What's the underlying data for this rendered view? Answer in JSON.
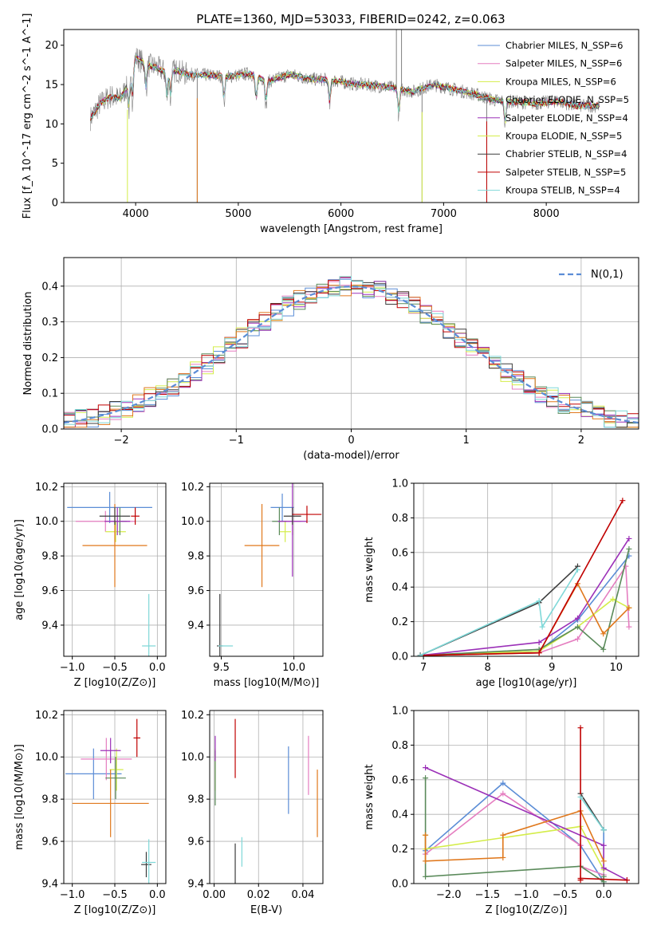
{
  "figure": {
    "title": "PLATE=1360, MJD=53033, FIBERID=0242, z=0.063"
  },
  "chart_data": [
    {
      "id": "spectrum",
      "type": "line",
      "xlabel": "wavelength [Angstrom, rest frame]",
      "ylabel": "Flux [f_λ 10^-17 erg cm^-2 s^-1 A^-1]",
      "xlim": [
        3300,
        8900
      ],
      "ylim": [
        0,
        22
      ],
      "xticks": [
        4000,
        5000,
        6000,
        7000,
        8000
      ],
      "yticks": [
        0,
        5,
        10,
        15,
        20
      ],
      "grid": false,
      "legend_position": "top-right",
      "series": [
        {
          "name": "Chabrier MILES, N_SSP=6",
          "color": "#5b8dd6"
        },
        {
          "name": "Salpeter MILES, N_SSP=6",
          "color": "#e57ec0"
        },
        {
          "name": "Kroupa MILES, N_SSP=6",
          "color": "#d4ed4a"
        },
        {
          "name": "Chabrier ELODIE, N_SSP=5",
          "color": "#5a8a5a"
        },
        {
          "name": "Salpeter ELODIE, N_SSP=4",
          "color": "#9b30b8"
        },
        {
          "name": "Kroupa ELODIE, N_SSP=5",
          "color": "#d4ed4a"
        },
        {
          "name": "Chabrier STELIB, N_SSP=4",
          "color": "#3d3d3d"
        },
        {
          "name": "Salpeter STELIB, N_SSP=5",
          "color": "#c00000"
        },
        {
          "name": "Kroupa STELIB, N_SSP=4",
          "color": "#7fd8d8"
        }
      ],
      "observed_color": "#808080",
      "continuum_points": [
        [
          3550,
          10.5
        ],
        [
          3650,
          12.5
        ],
        [
          3750,
          13.5
        ],
        [
          3850,
          13.2
        ],
        [
          3950,
          15.5
        ],
        [
          4000,
          18.5
        ],
        [
          4100,
          17.5
        ],
        [
          4200,
          17.2
        ],
        [
          4300,
          16.5
        ],
        [
          4400,
          16.8
        ],
        [
          4500,
          16.3
        ],
        [
          4700,
          16.2
        ],
        [
          4900,
          16.0
        ],
        [
          5100,
          16.4
        ],
        [
          5300,
          15.4
        ],
        [
          5500,
          16.3
        ],
        [
          5700,
          15.7
        ],
        [
          5900,
          15.6
        ],
        [
          6100,
          15.1
        ],
        [
          6300,
          14.9
        ],
        [
          6500,
          14.6
        ],
        [
          6700,
          14.1
        ],
        [
          6900,
          15.0
        ],
        [
          7100,
          14.4
        ],
        [
          7300,
          13.8
        ],
        [
          7500,
          13.0
        ],
        [
          7700,
          12.8
        ],
        [
          7900,
          12.6
        ],
        [
          8100,
          12.9
        ],
        [
          8300,
          12.3
        ],
        [
          8500,
          12.3
        ]
      ]
    },
    {
      "id": "residuals",
      "type": "line",
      "xlabel": "(data-model)/error",
      "ylabel": "Normed distribution",
      "xlim": [
        -2.5,
        2.5
      ],
      "ylim": [
        0,
        0.48
      ],
      "xticks": [
        -2,
        -1,
        0,
        1,
        2
      ],
      "yticks": [
        0.0,
        0.1,
        0.2,
        0.3,
        0.4
      ],
      "grid": true,
      "legend_position": "top-right",
      "legend_label": "N(0,1)",
      "normal_curve_color": "#5b8dd6",
      "bin_width": 0.1,
      "histogram_colors": [
        "#5b8dd6",
        "#e57ec0",
        "#d4ed4a",
        "#5a8a5a",
        "#9b30b8",
        "#e0781c",
        "#3d3d3d",
        "#c00000",
        "#7fd8d8"
      ]
    },
    {
      "id": "age-vs-Z",
      "type": "scatter",
      "xlabel": "Z [log10(Z/Z⊙)]",
      "ylabel": "age [log10(age/yr)]",
      "xlim": [
        -1.1,
        0.1
      ],
      "ylim": [
        9.22,
        10.22
      ],
      "xticks": [
        -1.0,
        -0.5,
        0.0
      ],
      "yticks": [
        9.4,
        9.6,
        9.8,
        10.0,
        10.2
      ],
      "grid": true,
      "points": [
        {
          "x": -0.56,
          "y": 10.08,
          "xerr": 0.5,
          "yerr": 0.09,
          "color": "#5b8dd6"
        },
        {
          "x": -0.61,
          "y": 10.0,
          "xerr": 0.35,
          "yerr": 0.06,
          "color": "#e57ec0"
        },
        {
          "x": -0.49,
          "y": 9.94,
          "xerr": 0.12,
          "yerr": 0.06,
          "color": "#d4ed4a"
        },
        {
          "x": -0.44,
          "y": 10.0,
          "xerr": 0.08,
          "yerr": 0.08,
          "color": "#5a8a5a"
        },
        {
          "x": -0.47,
          "y": 10.0,
          "xerr": 0.15,
          "yerr": 0.08,
          "color": "#9b30b8"
        },
        {
          "x": -0.5,
          "y": 9.86,
          "xerr": 0.38,
          "yerr": 0.24,
          "color": "#e0781c"
        },
        {
          "x": -0.5,
          "y": 10.03,
          "xerr": 0.18,
          "yerr": 0.05,
          "color": "#3d3d3d"
        },
        {
          "x": -0.26,
          "y": 10.03,
          "xerr": 0.05,
          "yerr": 0.05,
          "color": "#c00000"
        },
        {
          "x": -0.1,
          "y": 9.28,
          "xerr": 0.08,
          "yerr": 0.3,
          "color": "#7fd8d8"
        }
      ]
    },
    {
      "id": "age-vs-mass",
      "type": "scatter",
      "xlabel": "mass [log10(M/M⊙)]",
      "ylabel": "",
      "xlim": [
        9.42,
        10.2
      ],
      "ylim": [
        9.22,
        10.22
      ],
      "xticks": [
        9.5,
        10.0
      ],
      "yticks": [
        9.4,
        9.6,
        9.8,
        10.0,
        10.2
      ],
      "grid": true,
      "points": [
        {
          "x": 9.92,
          "y": 10.08,
          "xerr": 0.08,
          "yerr": 0.08,
          "color": "#5b8dd6"
        },
        {
          "x": 9.99,
          "y": 10.0,
          "xerr": 0.06,
          "yerr": 0.08,
          "color": "#e57ec0"
        },
        {
          "x": 9.94,
          "y": 9.94,
          "xerr": 0.04,
          "yerr": 0.06,
          "color": "#d4ed4a"
        },
        {
          "x": 9.9,
          "y": 10.0,
          "xerr": 0.05,
          "yerr": 0.08,
          "color": "#5a8a5a"
        },
        {
          "x": 9.99,
          "y": 10.0,
          "xerr": 0.1,
          "yerr": 0.32,
          "color": "#9b30b8"
        },
        {
          "x": 9.78,
          "y": 9.86,
          "xerr": 0.12,
          "yerr": 0.24,
          "color": "#e0781c"
        },
        {
          "x": 9.99,
          "y": 10.03,
          "xerr": 0.06,
          "yerr": 0.05,
          "color": "#3d3d3d"
        },
        {
          "x": 10.09,
          "y": 10.04,
          "xerr": 0.1,
          "yerr": 0.05,
          "color": "#c00000"
        },
        {
          "x": 9.49,
          "y": 9.28,
          "xerr": 0.02,
          "yerr": 0.3,
          "color": "#3d3d3d"
        },
        {
          "x": 9.53,
          "y": 9.28,
          "xerr": 0.05,
          "yerr": 0.0,
          "color": "#7fd8d8"
        }
      ]
    },
    {
      "id": "massweight-vs-age",
      "type": "line",
      "xlabel": "age [log10(age/yr)]",
      "ylabel": "mass weight",
      "xlim": [
        6.85,
        10.35
      ],
      "ylim": [
        0,
        1.0
      ],
      "xticks": [
        7,
        8,
        9,
        10
      ],
      "yticks": [
        0.0,
        0.2,
        0.4,
        0.6,
        0.8,
        1.0
      ],
      "grid": true,
      "series": [
        {
          "color": "#5b8dd6",
          "x": [
            6.95,
            8.8,
            9.4,
            10.2
          ],
          "y": [
            0.005,
            0.03,
            0.21,
            0.58
          ]
        },
        {
          "color": "#e57ec0",
          "x": [
            6.95,
            8.8,
            9.4,
            10.15,
            10.2
          ],
          "y": [
            0.005,
            0.02,
            0.1,
            0.52,
            0.17
          ]
        },
        {
          "color": "#d4ed4a",
          "x": [
            6.95,
            8.8,
            9.4,
            9.95,
            10.2
          ],
          "y": [
            0.005,
            0.03,
            0.17,
            0.33,
            0.28
          ]
        },
        {
          "color": "#5a8a5a",
          "x": [
            6.95,
            8.8,
            9.4,
            9.8,
            10.2
          ],
          "y": [
            0.005,
            0.04,
            0.17,
            0.04,
            0.62
          ]
        },
        {
          "color": "#9b30b8",
          "x": [
            6.95,
            8.8,
            9.4,
            10.2
          ],
          "y": [
            0.005,
            0.08,
            0.22,
            0.68
          ]
        },
        {
          "color": "#e0781c",
          "x": [
            6.95,
            8.8,
            9.4,
            9.8,
            10.2
          ],
          "y": [
            0.005,
            0.02,
            0.42,
            0.13,
            0.28
          ]
        },
        {
          "color": "#3d3d3d",
          "x": [
            6.95,
            8.8,
            9.4
          ],
          "y": [
            0.005,
            0.31,
            0.52
          ]
        },
        {
          "color": "#c00000",
          "x": [
            6.95,
            8.8,
            10.1
          ],
          "y": [
            0.005,
            0.02,
            0.9
          ]
        },
        {
          "color": "#7fd8d8",
          "x": [
            6.95,
            8.8,
            8.85,
            9.4
          ],
          "y": [
            0.005,
            0.32,
            0.17,
            0.5
          ]
        }
      ]
    },
    {
      "id": "mass-vs-Z",
      "type": "scatter",
      "xlabel": "Z [log10(Z/Z⊙)]",
      "ylabel": "mass [log10(M/M⊙)]",
      "xlim": [
        -1.1,
        0.1
      ],
      "ylim": [
        9.4,
        10.22
      ],
      "xticks": [
        -1.0,
        -0.5,
        0.0
      ],
      "yticks": [
        9.4,
        9.6,
        9.8,
        10.0,
        10.2
      ],
      "grid": true,
      "points": [
        {
          "x": -0.75,
          "y": 9.92,
          "xerr": 0.33,
          "yerr": 0.12,
          "color": "#5b8dd6"
        },
        {
          "x": -0.6,
          "y": 9.99,
          "xerr": 0.3,
          "yerr": 0.1,
          "color": "#e57ec0"
        },
        {
          "x": -0.48,
          "y": 9.94,
          "xerr": 0.08,
          "yerr": 0.1,
          "color": "#d4ed4a"
        },
        {
          "x": -0.49,
          "y": 9.9,
          "xerr": 0.12,
          "yerr": 0.1,
          "color": "#5a8a5a"
        },
        {
          "x": -0.55,
          "y": 10.03,
          "xerr": 0.12,
          "yerr": 0.06,
          "color": "#9b30b8"
        },
        {
          "x": -0.55,
          "y": 9.78,
          "xerr": 0.45,
          "yerr": 0.16,
          "color": "#e0781c"
        },
        {
          "x": -0.24,
          "y": 10.09,
          "xerr": 0.04,
          "yerr": 0.09,
          "color": "#c00000"
        },
        {
          "x": -0.13,
          "y": 9.49,
          "xerr": 0.06,
          "yerr": 0.06,
          "color": "#3d3d3d"
        },
        {
          "x": -0.1,
          "y": 9.5,
          "xerr": 0.08,
          "yerr": 0.11,
          "color": "#7fd8d8"
        }
      ]
    },
    {
      "id": "mass-vs-EBV",
      "type": "scatter",
      "xlabel": "E(B-V)",
      "ylabel": "",
      "xlim": [
        -0.002,
        0.049
      ],
      "ylim": [
        9.4,
        10.22
      ],
      "xticks": [
        0.0,
        0.02,
        0.04
      ],
      "yticks": [
        9.4,
        9.6,
        9.8,
        10.0,
        10.2
      ],
      "grid": true,
      "points": [
        {
          "x": 0.0335,
          "y": 9.89,
          "xerr": 0.0,
          "yerr": 0.16,
          "color": "#5b8dd6"
        },
        {
          "x": 0.0425,
          "y": 9.96,
          "xerr": 0.0,
          "yerr": 0.14,
          "color": "#e57ec0"
        },
        {
          "x": 0.0005,
          "y": 9.94,
          "xerr": 0.0,
          "yerr": 0.1,
          "color": "#d4ed4a"
        },
        {
          "x": 0.0005,
          "y": 9.9,
          "xerr": 0.0,
          "yerr": 0.13,
          "color": "#5a8a5a"
        },
        {
          "x": 0.0005,
          "y": 10.04,
          "xerr": 0.0,
          "yerr": 0.06,
          "color": "#9b30b8"
        },
        {
          "x": 0.0465,
          "y": 9.78,
          "xerr": 0.0,
          "yerr": 0.16,
          "color": "#e0781c"
        },
        {
          "x": 0.0095,
          "y": 9.49,
          "xerr": 0.0,
          "yerr": 0.1,
          "color": "#3d3d3d"
        },
        {
          "x": 0.0095,
          "y": 10.04,
          "xerr": 0.0,
          "yerr": 0.14,
          "color": "#c00000"
        },
        {
          "x": 0.0125,
          "y": 9.55,
          "xerr": 0.0,
          "yerr": 0.07,
          "color": "#7fd8d8"
        }
      ]
    },
    {
      "id": "massweight-vs-Z",
      "type": "line",
      "xlabel": "Z [log10(Z/Z⊙)]",
      "ylabel": "mass weight",
      "xlim": [
        -2.45,
        0.45
      ],
      "ylim": [
        0,
        1.0
      ],
      "xticks": [
        -2.0,
        -1.5,
        -1.0,
        -0.5,
        0.0
      ],
      "yticks": [
        0.0,
        0.2,
        0.4,
        0.6,
        0.8,
        1.0
      ],
      "grid": true,
      "series": [
        {
          "color": "#5b8dd6",
          "x": [
            -2.3,
            -1.3,
            -0.3,
            0.0,
            0.0
          ],
          "y": [
            0.19,
            0.58,
            0.22,
            0.01,
            0.31
          ]
        },
        {
          "color": "#e57ec0",
          "x": [
            -2.3,
            -1.3,
            -0.3,
            -0.3,
            0.0
          ],
          "y": [
            0.17,
            0.52,
            0.22,
            0.1,
            0.05
          ]
        },
        {
          "color": "#d4ed4a",
          "x": [
            -2.3,
            -2.3,
            -0.3,
            0.0
          ],
          "y": [
            0.28,
            0.2,
            0.33,
            0.08
          ]
        },
        {
          "color": "#5a8a5a",
          "x": [
            -2.3,
            -2.3,
            -0.3,
            0.0,
            0.0
          ],
          "y": [
            0.61,
            0.04,
            0.1,
            0.01,
            0.04
          ]
        },
        {
          "color": "#9b30b8",
          "x": [
            -2.3,
            0.0,
            0.0,
            0.3
          ],
          "y": [
            0.67,
            0.22,
            0.09,
            0.02
          ]
        },
        {
          "color": "#e0781c",
          "x": [
            -2.3,
            -2.3,
            -1.3,
            -1.3,
            -0.3,
            0.0
          ],
          "y": [
            0.28,
            0.13,
            0.15,
            0.28,
            0.42,
            0.13
          ]
        },
        {
          "color": "#3d3d3d",
          "x": [
            -0.3,
            0.0
          ],
          "y": [
            0.52,
            0.31
          ]
        },
        {
          "color": "#c00000",
          "x": [
            -0.3,
            -0.3,
            -0.3,
            0.3
          ],
          "y": [
            0.9,
            0.02,
            0.03,
            0.02
          ]
        },
        {
          "color": "#7fd8d8",
          "x": [
            -0.3,
            0.0
          ],
          "y": [
            0.5,
            0.31
          ]
        }
      ]
    }
  ]
}
